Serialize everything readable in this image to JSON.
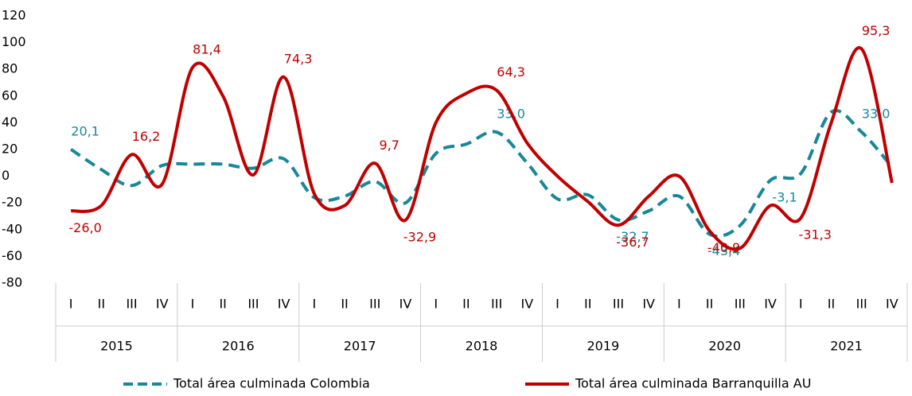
{
  "chart_data": {
    "type": "line",
    "categories": [
      "I",
      "II",
      "III",
      "IV",
      "I",
      "II",
      "III",
      "IV",
      "I",
      "II",
      "III",
      "IV",
      "I",
      "II",
      "III",
      "IV",
      "I",
      "II",
      "III",
      "IV",
      "I",
      "II",
      "III",
      "IV",
      "I",
      "II",
      "III",
      "IV"
    ],
    "years": [
      "2015",
      "2016",
      "2017",
      "2018",
      "2019",
      "2020",
      "2021"
    ],
    "ylim": [
      -80,
      120
    ],
    "yticks": [
      -80,
      -60,
      -40,
      -20,
      0,
      20,
      40,
      60,
      80,
      100,
      120
    ],
    "legend": "bottom",
    "series": [
      {
        "name": "Total área culminada Colombia",
        "color": "#17879a",
        "dash": true,
        "values": [
          20.1,
          5,
          -7,
          8,
          9,
          9,
          6,
          13,
          -16,
          -15,
          -4,
          -20,
          17,
          24,
          33.0,
          10,
          -17,
          -14,
          -32.7,
          -26,
          -15,
          -43.4,
          -37,
          -3.1,
          2,
          48,
          33.0,
          7
        ],
        "value_labels": [
          "20,1",
          null,
          null,
          null,
          null,
          null,
          null,
          null,
          null,
          null,
          null,
          null,
          null,
          null,
          "33,0",
          null,
          null,
          null,
          "-32,7",
          null,
          null,
          "-43,4",
          null,
          "-3,1",
          null,
          null,
          "33,0",
          null
        ]
      },
      {
        "name": "Total área culminada Barranquilla AU",
        "color": "#c00000",
        "dash": false,
        "values": [
          -26.0,
          -22,
          16.2,
          -6,
          81.4,
          60,
          1,
          74.3,
          -13,
          -22,
          9.7,
          -32.9,
          40,
          62,
          64.3,
          25,
          0,
          -19,
          -36.7,
          -15,
          0,
          -40.9,
          -54,
          -22,
          -31.3,
          40,
          95.3,
          -5
        ],
        "value_labels": [
          "-26,0",
          null,
          "16,2",
          null,
          "81,4",
          null,
          null,
          "74,3",
          null,
          null,
          "9,7",
          "-32,9",
          null,
          null,
          "64,3",
          null,
          null,
          null,
          "-36,7",
          null,
          null,
          "-40,9",
          null,
          null,
          "-31,3",
          null,
          "95,3",
          null
        ]
      }
    ]
  }
}
